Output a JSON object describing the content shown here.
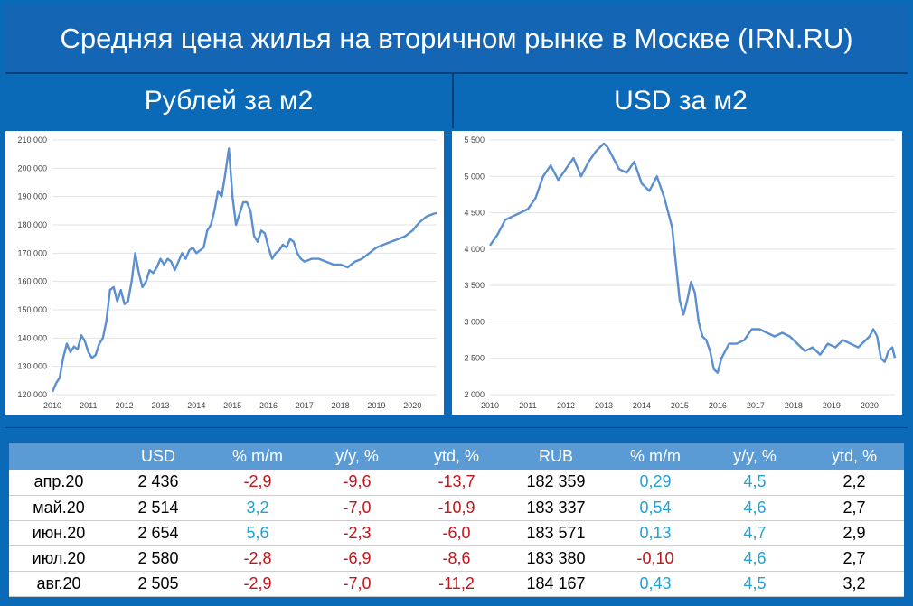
{
  "page": {
    "title": "Средняя цена жилья на вторичном рынке в Москве (IRN.RU)",
    "left_subtitle": "Рублей за м2",
    "right_subtitle": "USD за м2"
  },
  "colors": {
    "background": "#0a6ab8",
    "line": "#5b8fd0",
    "header": "#5b9bd5",
    "negative": "#c0161c",
    "positive": "#1fa2d6"
  },
  "chart_data": [
    {
      "type": "line",
      "title": "Рублей за м2",
      "ylim": [
        120000,
        210000
      ],
      "xlim": [
        2010,
        2020.67
      ],
      "y_ticks": [
        "120 000",
        "130 000",
        "140 000",
        "150 000",
        "160 000",
        "170 000",
        "180 000",
        "190 000",
        "200 000",
        "210 000"
      ],
      "x_ticks": [
        "2010",
        "2011",
        "2012",
        "2013",
        "2014",
        "2015",
        "2016",
        "2017",
        "2018",
        "2019",
        "2020"
      ],
      "grid": true,
      "series": [
        {
          "x": [
            2010.0,
            2010.1,
            2010.2,
            2010.3,
            2010.4,
            2010.5,
            2010.6,
            2010.7,
            2010.8,
            2010.9,
            2011.0,
            2011.1,
            2011.2,
            2011.3,
            2011.4,
            2011.5,
            2011.6,
            2011.7,
            2011.8,
            2011.9,
            2012.0,
            2012.1,
            2012.2,
            2012.3,
            2012.4,
            2012.5,
            2012.6,
            2012.7,
            2012.8,
            2012.9,
            2013.0,
            2013.1,
            2013.2,
            2013.3,
            2013.4,
            2013.5,
            2013.6,
            2013.7,
            2013.8,
            2013.9,
            2014.0,
            2014.1,
            2014.2,
            2014.3,
            2014.4,
            2014.5,
            2014.6,
            2014.7,
            2014.8,
            2014.9,
            2015.0,
            2015.1,
            2015.2,
            2015.3,
            2015.4,
            2015.5,
            2015.6,
            2015.7,
            2015.8,
            2015.9,
            2016.0,
            2016.1,
            2016.2,
            2016.3,
            2016.4,
            2016.5,
            2016.6,
            2016.7,
            2016.8,
            2016.9,
            2017.0,
            2017.2,
            2017.4,
            2017.6,
            2017.8,
            2018.0,
            2018.2,
            2018.4,
            2018.6,
            2018.8,
            2019.0,
            2019.2,
            2019.4,
            2019.6,
            2019.8,
            2020.0,
            2020.2,
            2020.4,
            2020.6,
            2020.67
          ],
          "y": [
            121000,
            124000,
            126000,
            133000,
            138000,
            135000,
            137000,
            136000,
            141000,
            139000,
            135000,
            133000,
            134000,
            138000,
            140000,
            146000,
            157000,
            158000,
            153000,
            157000,
            152000,
            153000,
            160000,
            170000,
            163000,
            158000,
            160000,
            164000,
            163000,
            165000,
            168000,
            166000,
            168000,
            167000,
            164000,
            167000,
            170000,
            168000,
            171000,
            172000,
            170000,
            171000,
            172000,
            178000,
            180000,
            185000,
            192000,
            190000,
            198000,
            207000,
            190000,
            180000,
            184000,
            188000,
            188000,
            185000,
            176000,
            174000,
            178000,
            177000,
            172000,
            168000,
            170000,
            171000,
            173000,
            172000,
            175000,
            174000,
            170000,
            168000,
            167000,
            168000,
            168000,
            167000,
            166000,
            166000,
            165000,
            167000,
            168000,
            170000,
            172000,
            173000,
            174000,
            175000,
            176000,
            178000,
            181000,
            183000,
            184000,
            184167
          ]
        }
      ]
    },
    {
      "type": "line",
      "title": "USD за м2",
      "ylim": [
        2000,
        5500
      ],
      "xlim": [
        2010,
        2020.67
      ],
      "y_ticks": [
        "2 000",
        "2 500",
        "3 000",
        "3 500",
        "4 000",
        "4 500",
        "5 000",
        "5 500"
      ],
      "x_ticks": [
        "2010",
        "2011",
        "2012",
        "2013",
        "2014",
        "2015",
        "2016",
        "2017",
        "2018",
        "2019",
        "2020"
      ],
      "grid": true,
      "series": [
        {
          "x": [
            2010.0,
            2010.2,
            2010.4,
            2010.6,
            2010.8,
            2011.0,
            2011.2,
            2011.4,
            2011.6,
            2011.8,
            2012.0,
            2012.2,
            2012.4,
            2012.6,
            2012.8,
            2013.0,
            2013.1,
            2013.2,
            2013.4,
            2013.6,
            2013.8,
            2014.0,
            2014.2,
            2014.4,
            2014.6,
            2014.8,
            2014.9,
            2015.0,
            2015.1,
            2015.2,
            2015.3,
            2015.4,
            2015.5,
            2015.6,
            2015.7,
            2015.8,
            2015.9,
            2016.0,
            2016.1,
            2016.3,
            2016.5,
            2016.7,
            2016.9,
            2017.1,
            2017.3,
            2017.5,
            2017.7,
            2017.9,
            2018.1,
            2018.3,
            2018.5,
            2018.7,
            2018.9,
            2019.1,
            2019.3,
            2019.5,
            2019.7,
            2019.9,
            2020.0,
            2020.1,
            2020.2,
            2020.3,
            2020.4,
            2020.5,
            2020.6,
            2020.67
          ],
          "y": [
            4050,
            4200,
            4400,
            4450,
            4500,
            4550,
            4700,
            5000,
            5150,
            4950,
            5100,
            5250,
            5000,
            5200,
            5350,
            5450,
            5400,
            5300,
            5100,
            5050,
            5200,
            4900,
            4800,
            5000,
            4700,
            4300,
            3800,
            3300,
            3100,
            3300,
            3550,
            3400,
            3000,
            2800,
            2750,
            2600,
            2350,
            2300,
            2500,
            2700,
            2700,
            2750,
            2900,
            2900,
            2850,
            2800,
            2850,
            2800,
            2700,
            2600,
            2650,
            2550,
            2700,
            2650,
            2750,
            2700,
            2650,
            2750,
            2800,
            2900,
            2800,
            2500,
            2450,
            2600,
            2650,
            2505
          ]
        }
      ]
    }
  ],
  "table": {
    "headers": [
      "",
      "USD",
      "% m/m",
      "y/y, %",
      "ytd, %",
      "RUB",
      "% m/m",
      "y/y, %",
      "ytd, %"
    ],
    "rows": [
      [
        "апр.20",
        "2 436",
        "-2,9",
        "-9,6",
        "-13,7",
        "182 359",
        "0,29",
        "4,5",
        "2,2"
      ],
      [
        "май.20",
        "2 514",
        "3,2",
        "-7,0",
        "-10,9",
        "183 337",
        "0,54",
        "4,6",
        "2,7"
      ],
      [
        "июн.20",
        "2 654",
        "5,6",
        "-2,3",
        "-6,0",
        "183 571",
        "0,13",
        "4,7",
        "2,9"
      ],
      [
        "июл.20",
        "2 580",
        "-2,8",
        "-6,9",
        "-8,6",
        "183 380",
        "-0,10",
        "4,6",
        "2,7"
      ],
      [
        "авг.20",
        "2 505",
        "-2,9",
        "-7,0",
        "-11,2",
        "184 167",
        "0,43",
        "4,5",
        "3,2"
      ]
    ]
  }
}
